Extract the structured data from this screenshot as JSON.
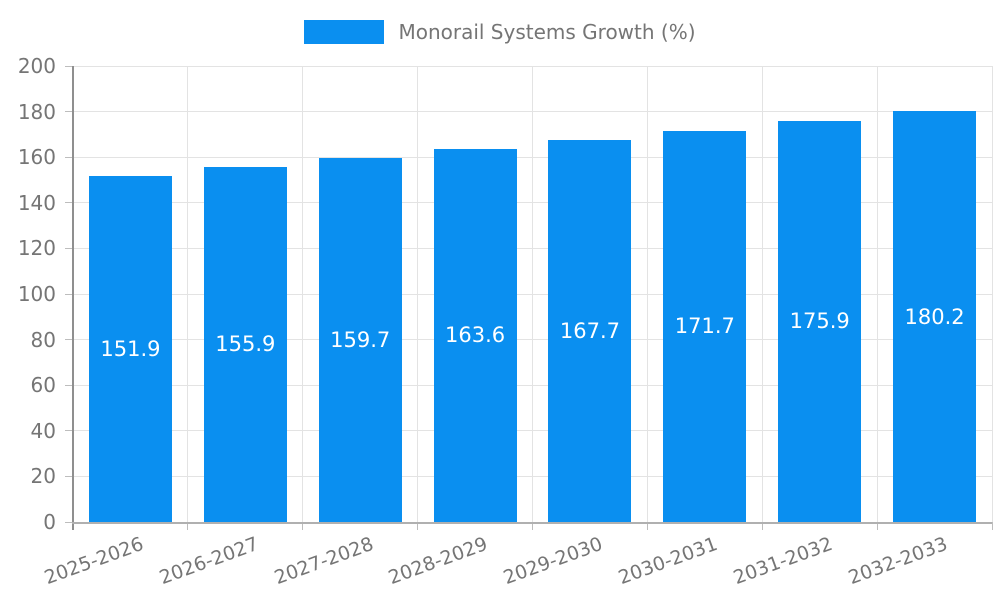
{
  "chart_data": {
    "type": "bar",
    "title": "",
    "legend": "Monorail Systems Growth (%)",
    "legend_position": "top-center",
    "categories": [
      "2025-2026",
      "2026-2027",
      "2027-2028",
      "2028-2029",
      "2029-2030",
      "2030-2031",
      "2031-2032",
      "2032-2033"
    ],
    "values": [
      151.9,
      155.9,
      159.7,
      163.6,
      167.7,
      171.7,
      175.9,
      180.2
    ],
    "value_labels": [
      "151.9",
      "155.9",
      "159.7",
      "163.6",
      "167.7",
      "171.7",
      "175.9",
      "180.2"
    ],
    "xlabel": "",
    "ylabel": "",
    "ylim": [
      0,
      200
    ],
    "y_ticks": [
      0,
      20,
      40,
      60,
      80,
      100,
      120,
      140,
      160,
      180,
      200
    ],
    "grid": true,
    "x_tick_rotation_deg": -20,
    "colors": {
      "bar": "#0a8ff0",
      "value_label": "#ffffff",
      "grid": "#e3e3e3",
      "axis_spine_left": "#8f8f8f",
      "axis_spine_bottom": "#b0b0b0",
      "tick_mark": "#bdbdbd",
      "tick_text": "#757575",
      "legend_text": "#757575"
    }
  }
}
